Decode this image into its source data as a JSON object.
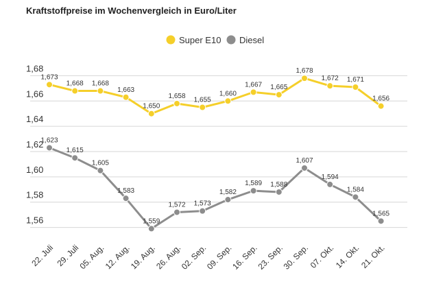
{
  "chart_data": {
    "type": "line",
    "title": "Kraftstoffpreise im Wochenvergleich in Euro/Liter",
    "xlabel": "",
    "ylabel": "",
    "categories": [
      "22. Juli",
      "29. Juli",
      "05. Aug.",
      "12. Aug.",
      "19. Aug.",
      "26. Aug.",
      "02. Sep.",
      "09. Sep.",
      "16. Sep.",
      "23. Sep.",
      "30. Sep.",
      "07. Okt.",
      "14. Okt.",
      "21. Okt."
    ],
    "series": [
      {
        "name": "Super E10",
        "color": "#f5cf2a",
        "values": [
          1.673,
          1.668,
          1.668,
          1.663,
          1.65,
          1.658,
          1.655,
          1.66,
          1.667,
          1.665,
          1.678,
          1.672,
          1.671,
          1.656
        ],
        "labels": [
          "1,673",
          "1,668",
          "1,668",
          "1,663",
          "1,650",
          "1,658",
          "1,655",
          "1,660",
          "1,667",
          "1,665",
          "1,678",
          "1,672",
          "1,671",
          "1,656"
        ]
      },
      {
        "name": "Diesel",
        "color": "#8d8d8d",
        "values": [
          1.623,
          1.615,
          1.605,
          1.583,
          1.559,
          1.572,
          1.573,
          1.582,
          1.589,
          1.588,
          1.607,
          1.594,
          1.584,
          1.565
        ],
        "labels": [
          "1,623",
          "1,615",
          "1,605",
          "1,583",
          "1,559",
          "1,572",
          "1,573",
          "1,582",
          "1,589",
          "1,588",
          "1,607",
          "1,594",
          "1,584",
          "1,565"
        ]
      }
    ],
    "ylim": [
      1.55,
      1.69
    ],
    "yticks": [
      1.56,
      1.58,
      1.6,
      1.62,
      1.64,
      1.66,
      1.68
    ],
    "ytick_labels": [
      "1,56",
      "1,58",
      "1,60",
      "1,62",
      "1,64",
      "1,66",
      "1,68"
    ],
    "grid": true,
    "legend_position": "top-center"
  }
}
